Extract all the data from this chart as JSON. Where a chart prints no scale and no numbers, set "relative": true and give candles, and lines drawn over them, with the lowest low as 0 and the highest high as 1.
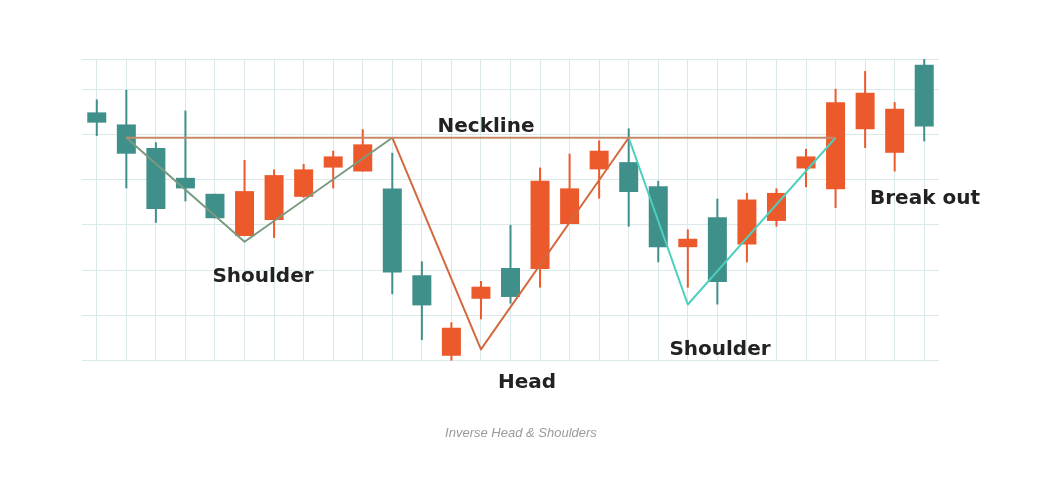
{
  "chart_data": {
    "type": "candlestick",
    "relative": true,
    "legend": false,
    "grid": true,
    "categories": [
      null,
      null,
      null,
      null,
      null,
      null,
      null,
      null,
      null,
      null,
      null,
      null,
      null,
      null,
      null,
      null,
      null,
      null,
      null,
      null,
      null,
      null,
      null,
      null,
      null,
      null,
      null,
      null,
      null
    ],
    "ohlc": [
      [
        0.823,
        0.866,
        0.745,
        0.789
      ],
      [
        0.783,
        0.898,
        0.571,
        0.686
      ],
      [
        0.705,
        0.724,
        0.457,
        0.503
      ],
      [
        0.606,
        0.829,
        0.528,
        0.571
      ],
      [
        0.553,
        0.553,
        0.472,
        0.472
      ],
      [
        0.413,
        0.665,
        0.413,
        0.562
      ],
      [
        0.466,
        0.634,
        0.407,
        0.615
      ],
      [
        0.543,
        0.652,
        0.54,
        0.634
      ],
      [
        0.64,
        0.696,
        0.571,
        0.677
      ],
      [
        0.627,
        0.767,
        0.627,
        0.717
      ],
      [
        0.571,
        0.689,
        0.22,
        0.292
      ],
      [
        0.283,
        0.329,
        0.068,
        0.183
      ],
      [
        0.016,
        0.127,
        0,
        0.109
      ],
      [
        0.205,
        0.264,
        0.137,
        0.245
      ],
      [
        0.307,
        0.45,
        0.189,
        0.211
      ],
      [
        0.304,
        0.64,
        0.242,
        0.596
      ],
      [
        0.453,
        0.686,
        0.453,
        0.571
      ],
      [
        0.634,
        0.73,
        0.537,
        0.696
      ],
      [
        0.658,
        0.77,
        0.444,
        0.559
      ],
      [
        0.578,
        0.596,
        0.326,
        0.376
      ],
      [
        0.376,
        0.435,
        0.242,
        0.404
      ],
      [
        0.475,
        0.537,
        0.186,
        0.261
      ],
      [
        0.385,
        0.556,
        0.326,
        0.534
      ],
      [
        0.463,
        0.571,
        0.444,
        0.556
      ],
      [
        0.637,
        0.702,
        0.575,
        0.677
      ],
      [
        0.568,
        0.901,
        0.506,
        0.857
      ],
      [
        0.767,
        0.96,
        0.705,
        0.888
      ],
      [
        0.689,
        0.857,
        0.627,
        0.835
      ],
      [
        0.981,
        1,
        0.727,
        0.776
      ]
    ],
    "colors": [
      "#3f8f8a",
      "#3f8f8a",
      "#3f8f8a",
      "#3f8f8a",
      "#3f8f8a",
      "#ec5a2c",
      "#ec5a2c",
      "#ec5a2c",
      "#ec5a2c",
      "#ec5a2c",
      "#3f8f8a",
      "#3f8f8a",
      "#ec5a2c",
      "#ec5a2c",
      "#3f8f8a",
      "#ec5a2c",
      "#ec5a2c",
      "#ec5a2c",
      "#3f8f8a",
      "#3f8f8a",
      "#ec5a2c",
      "#3f8f8a",
      "#ec5a2c",
      "#ec5a2c",
      "#ec5a2c",
      "#ec5a2c",
      "#ec5a2c",
      "#ec5a2c",
      "#3f8f8a"
    ],
    "series": [
      {
        "type": "line",
        "color": "#c8896a",
        "values": [
          null,
          0.739,
          null,
          null,
          null,
          null,
          null,
          null,
          null,
          null,
          null,
          null,
          null,
          null,
          null,
          null,
          null,
          null,
          null,
          null,
          null,
          null,
          null,
          null,
          null,
          0.739,
          null,
          null,
          null
        ]
      },
      {
        "type": "line",
        "color": "#7a9a80",
        "values": [
          null,
          0.739,
          null,
          null,
          null,
          0.394,
          null,
          null,
          null,
          null,
          0.739,
          null,
          null,
          null,
          null,
          null,
          null,
          null,
          null,
          null,
          null,
          null,
          null,
          null,
          null,
          null,
          null,
          null,
          null
        ]
      },
      {
        "type": "line",
        "color": "#d2693f",
        "values": [
          null,
          null,
          null,
          null,
          null,
          null,
          null,
          null,
          null,
          null,
          0.739,
          null,
          null,
          0.037,
          null,
          null,
          null,
          null,
          0.739,
          null,
          null,
          null,
          null,
          null,
          null,
          null,
          null,
          null,
          null
        ]
      },
      {
        "type": "line",
        "color": "#4ccfbf",
        "values": [
          null,
          null,
          null,
          null,
          null,
          null,
          null,
          null,
          null,
          null,
          null,
          null,
          null,
          null,
          null,
          null,
          null,
          null,
          0.739,
          null,
          0.186,
          null,
          null,
          null,
          null,
          0.739,
          null,
          null,
          null
        ]
      }
    ],
    "annotations": [
      "Neckline",
      "Shoulder",
      "Head",
      "Shoulder",
      "Break out",
      "Inverse Head & Shoulders"
    ]
  }
}
